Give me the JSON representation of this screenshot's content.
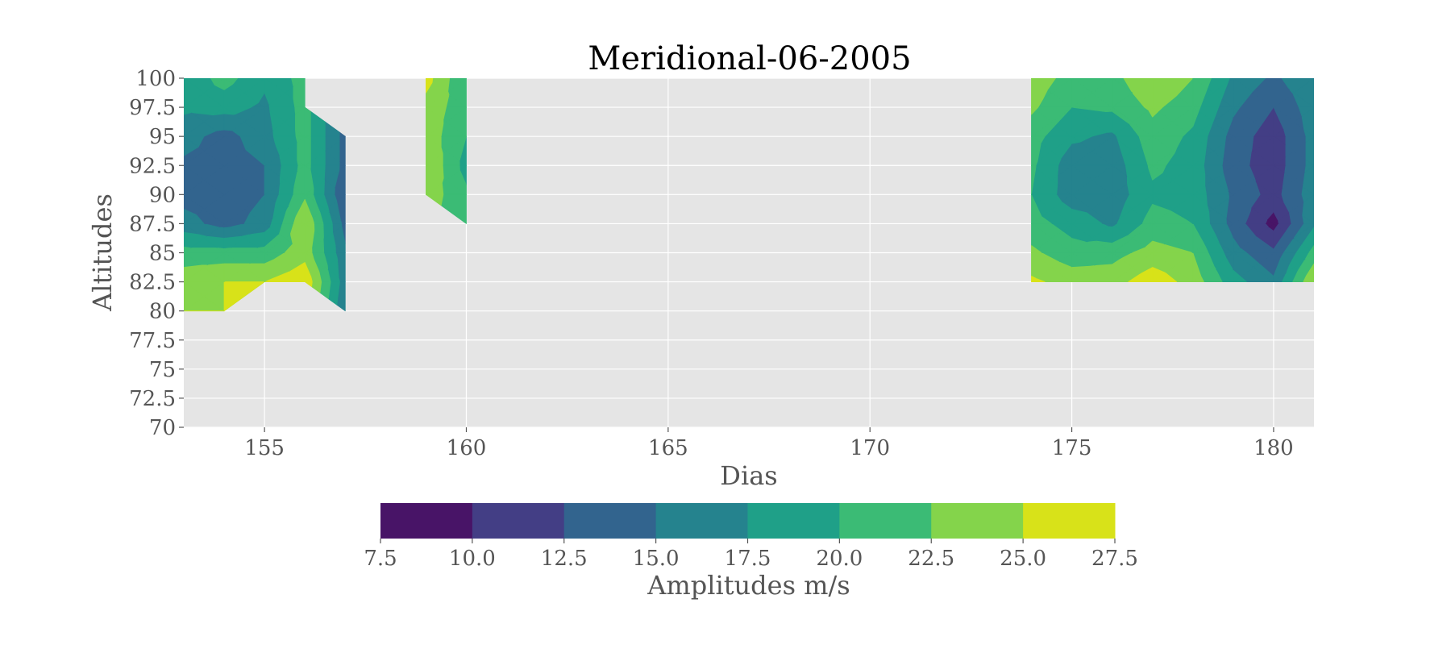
{
  "chart_data": {
    "type": "heatmap",
    "subtype": "filled-contour",
    "title": "Meridional-06-2005",
    "xlabel": "Dias",
    "ylabel": "Altitudes",
    "xlim": [
      153,
      181
    ],
    "ylim": [
      70,
      100
    ],
    "xticks": [
      155,
      160,
      165,
      170,
      175,
      180
    ],
    "yticks": [
      70,
      72.5,
      75,
      77.5,
      80,
      82.5,
      85,
      87.5,
      90,
      92.5,
      95,
      97.5,
      100
    ],
    "xtick_labels": [
      "155",
      "160",
      "165",
      "170",
      "175",
      "180"
    ],
    "ytick_labels": [
      "70",
      "72.5",
      "75",
      "77.5",
      "80",
      "82.5",
      "85",
      "87.5",
      "90",
      "92.5",
      "95",
      "97.5",
      "100"
    ],
    "grid": true,
    "background_color": "#e5e5e5",
    "colorbar": {
      "label": "Amplitudes m/s",
      "levels": [
        7.5,
        10.0,
        12.5,
        15.0,
        17.5,
        20.0,
        22.5,
        25.0,
        27.5
      ],
      "tick_labels": [
        "7.5",
        "10.0",
        "12.5",
        "15.0",
        "17.5",
        "20.0",
        "22.5",
        "25.0",
        "27.5"
      ],
      "colors": [
        "#481467",
        "#433e85",
        "#32648e",
        "#25838e",
        "#1fa088",
        "#3bbb75",
        "#84d44b",
        "#d8e219"
      ],
      "orientation": "horizontal",
      "placement": "bottom"
    },
    "regions": [
      {
        "name": "days-154-157",
        "x": [
          153,
          154,
          155,
          156,
          157
        ],
        "y": [
          80,
          82.5,
          85,
          87.5,
          90,
          92.5,
          95,
          97.5,
          100
        ],
        "values": [
          [
            25.0,
            25.0,
            null,
            null,
            15.0
          ],
          [
            24.0,
            25.0,
            25.0,
            27.0,
            16.0
          ],
          [
            21.0,
            21.0,
            21.0,
            24.0,
            15.5
          ],
          [
            16.0,
            14.0,
            16.0,
            25.0,
            14.0
          ],
          [
            14.0,
            13.5,
            15.0,
            22.0,
            12.5
          ],
          [
            14.5,
            14.0,
            15.0,
            21.0,
            14.0
          ],
          [
            16.0,
            14.0,
            16.5,
            21.0,
            14.0
          ],
          [
            18.0,
            18.5,
            17.0,
            21.0,
            null
          ],
          [
            18.0,
            21.0,
            18.0,
            21.0,
            null
          ]
        ]
      },
      {
        "name": "days-159-160",
        "x": [
          159,
          160
        ],
        "y": [
          87.5,
          90,
          92.5,
          95,
          97.5,
          100
        ],
        "values": [
          [
            null,
            20.0
          ],
          [
            24.0,
            20.5
          ],
          [
            25.0,
            19.0
          ],
          [
            24.0,
            20.0
          ],
          [
            24.0,
            21.0
          ],
          [
            26.0,
            20.0
          ]
        ]
      },
      {
        "name": "days-174-181",
        "x": [
          174,
          175,
          176,
          177,
          178,
          179,
          180,
          181
        ],
        "y": [
          82.5,
          85,
          87.5,
          90,
          92.5,
          95,
          97.5,
          100
        ],
        "values": [
          [
            25.5,
            24.0,
            24.0,
            26.5,
            24.0,
            18.5,
            15.5,
            25.0
          ],
          [
            23.0,
            21.0,
            21.5,
            23.5,
            22.5,
            16.0,
            13.0,
            21.0
          ],
          [
            21.0,
            19.0,
            17.0,
            21.0,
            20.0,
            14.0,
            9.0,
            17.0
          ],
          [
            20.0,
            16.0,
            16.0,
            19.5,
            19.0,
            14.5,
            11.5,
            16.5
          ],
          [
            20.5,
            16.0,
            16.0,
            20.5,
            19.0,
            13.5,
            11.0,
            16.0
          ],
          [
            21.0,
            18.0,
            17.0,
            21.5,
            19.5,
            14.0,
            11.0,
            16.0
          ],
          [
            23.0,
            20.0,
            20.5,
            23.0,
            21.0,
            15.5,
            12.5,
            16.5
          ],
          [
            24.0,
            21.5,
            21.5,
            25.0,
            22.5,
            17.0,
            14.5,
            17.0
          ]
        ]
      }
    ]
  }
}
